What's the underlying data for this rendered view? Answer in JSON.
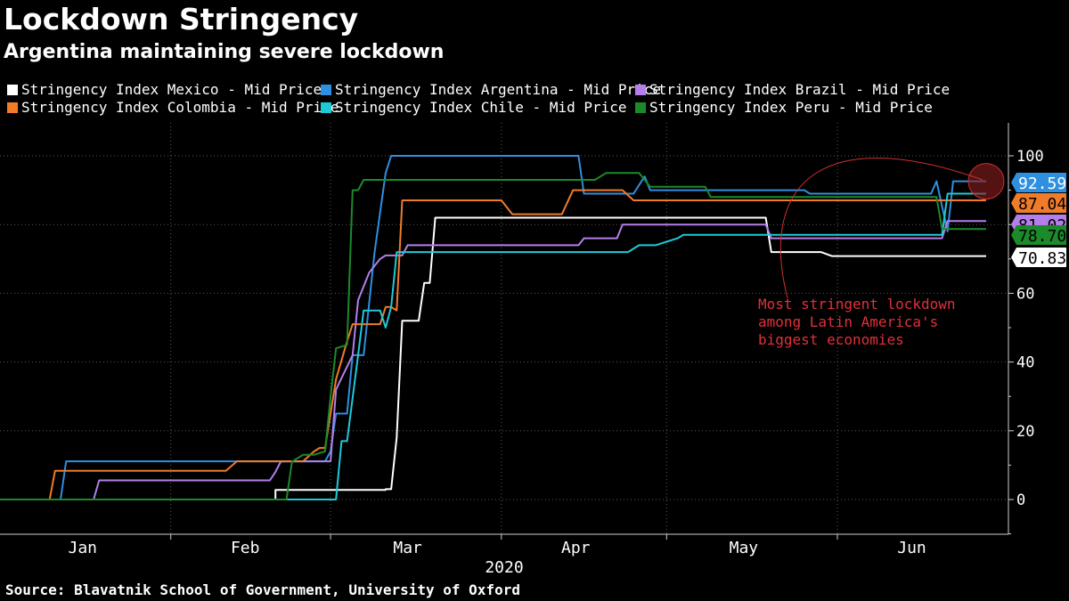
{
  "header": {
    "title": "Lockdown Stringency",
    "subtitle": "Argentina maintaining severe lockdown"
  },
  "source": "Source: Blavatnik School of Government, University of Oxford",
  "chart_data": {
    "type": "line",
    "title": "Lockdown Stringency",
    "subtitle": "Argentina maintaining severe lockdown",
    "xlabel": "2020",
    "ylabel": "",
    "x_unit": "day of year 2020 (1 = Jan 1)",
    "xlim": [
      1,
      183
    ],
    "ylim": [
      -10,
      108
    ],
    "yticks": [
      0,
      20,
      40,
      60,
      80,
      100
    ],
    "month_labels": [
      {
        "label": "Jan",
        "x": 16
      },
      {
        "label": "Feb",
        "x": 45.5
      },
      {
        "label": "Mar",
        "x": 75
      },
      {
        "label": "Apr",
        "x": 105.5
      },
      {
        "label": "May",
        "x": 136
      },
      {
        "label": "Jun",
        "x": 166.5
      }
    ],
    "month_boundaries": [
      32,
      61,
      92,
      122,
      153
    ],
    "year_label": "2020",
    "grid": true,
    "legend": "top",
    "series": [
      {
        "name": "Stringency Index Mexico - Mid Price",
        "color": "#ffffff",
        "last_value": "70.83",
        "points": [
          [
            1,
            0
          ],
          [
            51,
            0
          ],
          [
            51,
            2.78
          ],
          [
            71,
            2.78
          ],
          [
            71,
            3
          ],
          [
            72,
            3
          ],
          [
            73,
            18
          ],
          [
            74,
            52
          ],
          [
            77,
            52
          ],
          [
            78,
            63
          ],
          [
            79,
            63
          ],
          [
            80,
            82
          ],
          [
            140,
            82
          ],
          [
            141,
            72
          ],
          [
            150,
            72
          ],
          [
            152,
            70.83
          ],
          [
            180,
            70.83
          ]
        ]
      },
      {
        "name": "Stringency Index Argentina - Mid Price",
        "color": "#2f8fe0",
        "last_value": "92.59",
        "points": [
          [
            1,
            0
          ],
          [
            12,
            0
          ],
          [
            13,
            11.11
          ],
          [
            53,
            11.11
          ],
          [
            56,
            11.11
          ],
          [
            60,
            11.11
          ],
          [
            61,
            14
          ],
          [
            62,
            25
          ],
          [
            64,
            25
          ],
          [
            65,
            42
          ],
          [
            67,
            42
          ],
          [
            69,
            72
          ],
          [
            71,
            95
          ],
          [
            72,
            100
          ],
          [
            106,
            100
          ],
          [
            107,
            89
          ],
          [
            113,
            89
          ],
          [
            116,
            89
          ],
          [
            118,
            94
          ],
          [
            119,
            90
          ],
          [
            147,
            90
          ],
          [
            148,
            89
          ],
          [
            170,
            89
          ],
          [
            171,
            92.59
          ],
          [
            173,
            78
          ],
          [
            174,
            92.59
          ],
          [
            180,
            92.59
          ]
        ]
      },
      {
        "name": "Stringency Index Brazil - Mid Price",
        "color": "#b47fea",
        "last_value": "81.02",
        "points": [
          [
            1,
            0
          ],
          [
            18,
            0
          ],
          [
            19,
            5.56
          ],
          [
            50,
            5.56
          ],
          [
            51,
            8
          ],
          [
            52,
            11.11
          ],
          [
            61,
            11.11
          ],
          [
            62,
            32
          ],
          [
            65,
            42
          ],
          [
            66,
            58
          ],
          [
            68,
            66
          ],
          [
            70,
            70
          ],
          [
            71,
            71
          ],
          [
            72,
            71
          ],
          [
            74,
            71
          ],
          [
            75,
            74
          ],
          [
            106,
            74
          ],
          [
            107,
            76
          ],
          [
            113,
            76
          ],
          [
            114,
            80
          ],
          [
            140,
            80
          ],
          [
            141,
            76
          ],
          [
            172,
            76
          ],
          [
            173,
            81.02
          ],
          [
            180,
            81.02
          ]
        ]
      },
      {
        "name": "Stringency Index Colombia - Mid Price",
        "color": "#f07c2a",
        "last_value": "87.04",
        "points": [
          [
            1,
            0
          ],
          [
            10,
            0
          ],
          [
            11,
            8.33
          ],
          [
            42,
            8.33
          ],
          [
            44,
            11.11
          ],
          [
            56,
            11.11
          ],
          [
            58,
            14
          ],
          [
            59,
            15
          ],
          [
            60,
            15
          ],
          [
            61,
            25
          ],
          [
            62,
            35
          ],
          [
            64,
            46
          ],
          [
            65,
            51
          ],
          [
            70,
            51
          ],
          [
            71,
            56
          ],
          [
            72,
            56
          ],
          [
            73,
            55
          ],
          [
            74,
            87.04
          ],
          [
            92,
            87.04
          ],
          [
            94,
            83
          ],
          [
            103,
            83
          ],
          [
            105,
            90
          ],
          [
            114,
            90
          ],
          [
            116,
            87.04
          ],
          [
            180,
            87.04
          ]
        ]
      },
      {
        "name": "Stringency Index Chile - Mid Price",
        "color": "#1ecad8",
        "last_value": "75.00",
        "points": [
          [
            1,
            0
          ],
          [
            54,
            0
          ],
          [
            62,
            0
          ],
          [
            63,
            17
          ],
          [
            64,
            17
          ],
          [
            66,
            42
          ],
          [
            67,
            55
          ],
          [
            70,
            55
          ],
          [
            71,
            50
          ],
          [
            72,
            56
          ],
          [
            73,
            72
          ],
          [
            115,
            72
          ],
          [
            117,
            74
          ],
          [
            120,
            74
          ],
          [
            124,
            76
          ],
          [
            125,
            77
          ],
          [
            140,
            77
          ],
          [
            142,
            77
          ],
          [
            172,
            77
          ],
          [
            173,
            89
          ],
          [
            180,
            89
          ]
        ]
      },
      {
        "name": "Stringency Index Peru - Mid Price",
        "color": "#1c8a2a",
        "last_value": "78.70",
        "points": [
          [
            1,
            0
          ],
          [
            53,
            0
          ],
          [
            54,
            11
          ],
          [
            56,
            13
          ],
          [
            58,
            13
          ],
          [
            60,
            14
          ],
          [
            61,
            30
          ],
          [
            62,
            44
          ],
          [
            64,
            45
          ],
          [
            65,
            90
          ],
          [
            66,
            90
          ],
          [
            67,
            93
          ],
          [
            109,
            93
          ],
          [
            111,
            95
          ],
          [
            117,
            95
          ],
          [
            119,
            91
          ],
          [
            129,
            91
          ],
          [
            130,
            88
          ],
          [
            171,
            88
          ],
          [
            172,
            78.7
          ],
          [
            174,
            78.7
          ],
          [
            180,
            78.7
          ]
        ]
      }
    ],
    "value_labels": [
      {
        "text": "92.59",
        "value": 92.59,
        "color": "#2f8fe0",
        "text_color": "#ffffff"
      },
      {
        "text": "87.04",
        "value": 87.04,
        "color": "#f07c2a",
        "text_color": "#000000"
      },
      {
        "text": "81.02",
        "value": 81.02,
        "color": "#b47fea",
        "text_color": "#000000"
      },
      {
        "text": "78.70",
        "value": 78.7,
        "color": "#1c8a2a",
        "text_color": "#000000"
      },
      {
        "text": "70.83",
        "value": 70.83,
        "color": "#ffffff",
        "text_color": "#000000"
      }
    ],
    "annotation": {
      "lines": [
        "Most stringent lockdown",
        "among Latin America's",
        "biggest economies"
      ],
      "color": "#e0303a"
    }
  }
}
